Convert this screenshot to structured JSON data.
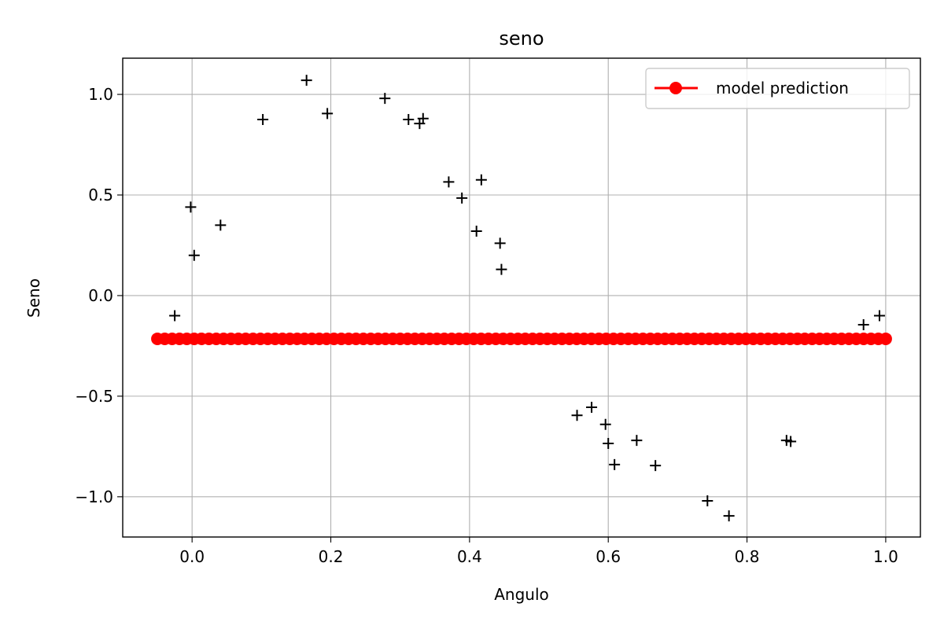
{
  "chart_data": {
    "type": "scatter",
    "title": "seno",
    "xlabel": "Angulo",
    "ylabel": "Seno",
    "xlim": [
      -0.1,
      1.05
    ],
    "ylim": [
      -1.2,
      1.18
    ],
    "xticks": [
      0.0,
      0.2,
      0.4,
      0.6,
      0.8,
      1.0
    ],
    "xtick_labels": [
      "0.0",
      "0.2",
      "0.4",
      "0.6",
      "0.8",
      "1.0"
    ],
    "yticks": [
      -1.0,
      -0.5,
      0.0,
      0.5,
      1.0
    ],
    "ytick_labels": [
      "−1.0",
      "−0.5",
      "0.0",
      "0.5",
      "1.0"
    ],
    "grid": true,
    "legend_position": "top-right",
    "series": [
      {
        "kind": "points",
        "marker": "plus",
        "color": "#000000",
        "x": [
          -0.025,
          -0.002,
          0.003,
          0.041,
          0.102,
          0.165,
          0.195,
          0.278,
          0.312,
          0.328,
          0.333,
          0.37,
          0.389,
          0.41,
          0.417,
          0.444,
          0.446,
          0.555,
          0.576,
          0.596,
          0.6,
          0.609,
          0.641,
          0.668,
          0.743,
          0.774,
          0.857,
          0.863,
          0.968,
          0.991
        ],
        "y": [
          -0.1,
          0.44,
          0.2,
          0.35,
          0.875,
          1.07,
          0.905,
          0.98,
          0.875,
          0.855,
          0.88,
          0.565,
          0.485,
          0.32,
          0.575,
          0.26,
          0.13,
          -0.595,
          -0.555,
          -0.64,
          -0.735,
          -0.84,
          -0.72,
          -0.845,
          -1.02,
          -1.095,
          -0.72,
          -0.725,
          -0.145,
          -0.1
        ]
      },
      {
        "name": "model prediction",
        "kind": "line-markers",
        "marker": "circle",
        "color": "#ff0000",
        "x_start": -0.05,
        "x_end": 1.0,
        "count": 100,
        "y": -0.215
      }
    ]
  }
}
